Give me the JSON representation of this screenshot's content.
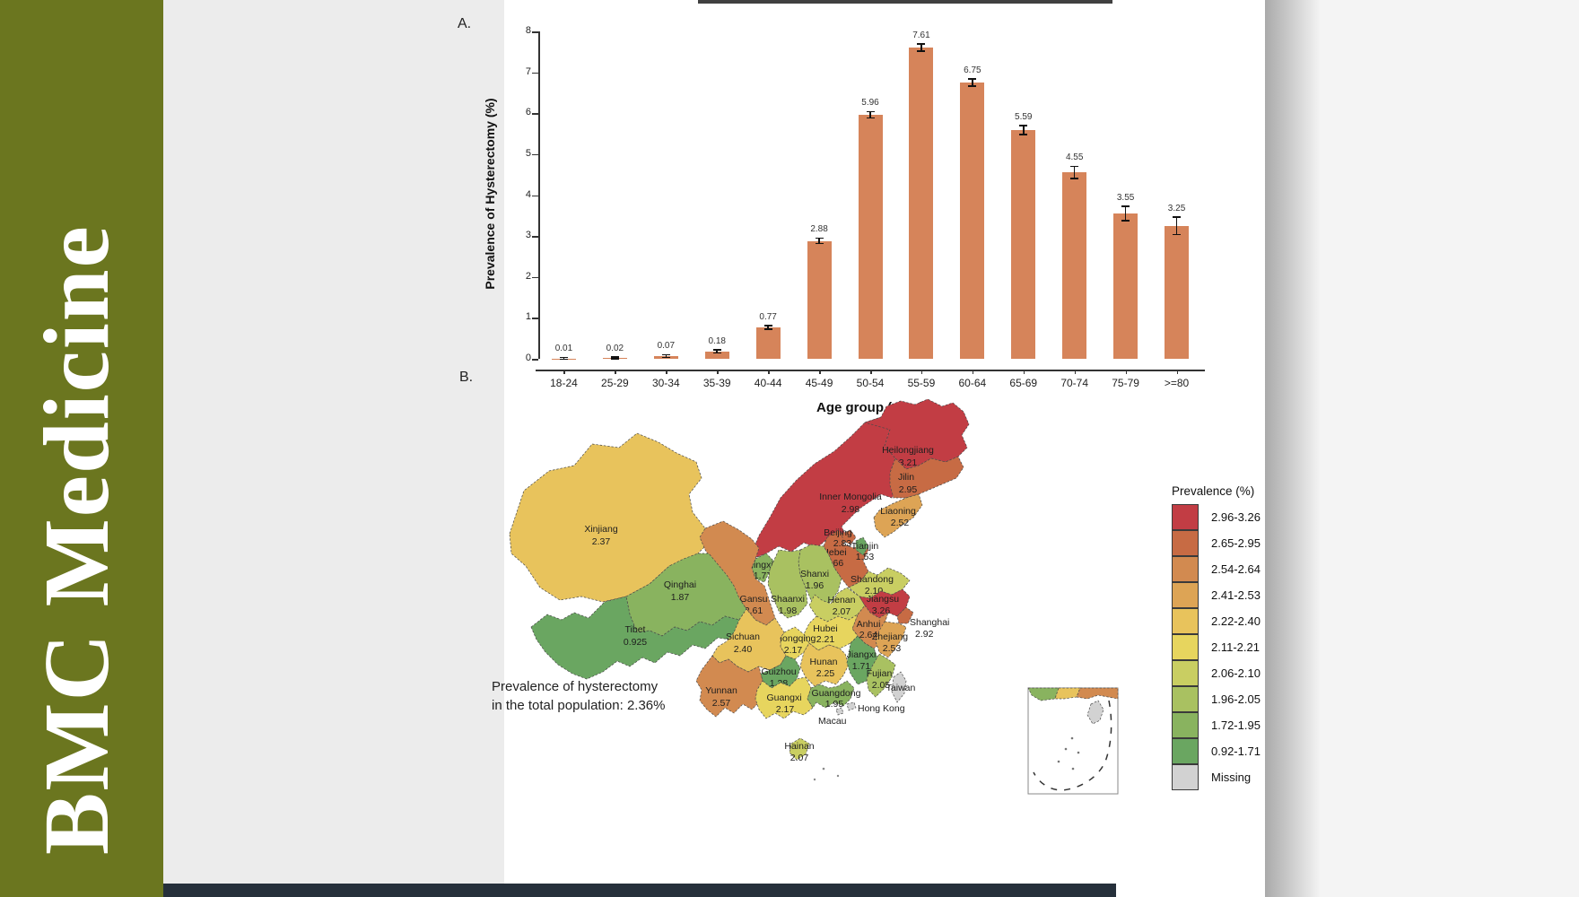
{
  "banner": {
    "journal_title": "BMC Medicine",
    "color": "#6b761f"
  },
  "panels": {
    "a_label": "A.",
    "b_label": "B."
  },
  "chart_data": [
    {
      "type": "bar",
      "title": "",
      "xlabel": "Age group (year)",
      "ylabel": "Prevalence of Hysterectomy (%)",
      "categories": [
        "18-24",
        "25-29",
        "30-34",
        "35-39",
        "40-44",
        "45-49",
        "50-54",
        "55-59",
        "60-64",
        "65-69",
        "70-74",
        "75-79",
        ">=80"
      ],
      "values": [
        0.01,
        0.02,
        0.07,
        0.18,
        0.77,
        2.88,
        5.96,
        7.61,
        6.75,
        5.59,
        4.55,
        3.55,
        3.25
      ],
      "errors": [
        0.005,
        0.008,
        0.015,
        0.025,
        0.03,
        0.05,
        0.06,
        0.07,
        0.07,
        0.09,
        0.13,
        0.16,
        0.2
      ],
      "ylim": [
        0,
        8
      ],
      "yticks": [
        0,
        1,
        2,
        3,
        4,
        5,
        6,
        7,
        8
      ],
      "bar_color": "#d6845a",
      "grid": false
    },
    {
      "type": "choropleth",
      "region": "China provinces",
      "legend_title": "Prevalence (%)",
      "legend_position": "right",
      "legend": [
        {
          "range": "2.96-3.26",
          "color": "#c23d44"
        },
        {
          "range": "2.65-2.95",
          "color": "#c76b44"
        },
        {
          "range": "2.54-2.64",
          "color": "#d28a50"
        },
        {
          "range": "2.41-2.53",
          "color": "#dda455"
        },
        {
          "range": "2.22-2.40",
          "color": "#e8c35c"
        },
        {
          "range": "2.11-2.21",
          "color": "#e7d55e"
        },
        {
          "range": "2.06-2.10",
          "color": "#c9ce62"
        },
        {
          "range": "1.96-2.05",
          "color": "#a9c161"
        },
        {
          "range": "1.72-1.95",
          "color": "#89b35f"
        },
        {
          "range": "0.92-1.71",
          "color": "#6aa661"
        },
        {
          "range": "Missing",
          "color": "#d2d2d2"
        }
      ],
      "annotation_line1": "Prevalence of hysterectomy",
      "annotation_line2": "in the total population: 2.36%",
      "provinces": {
        "heilongjiang": {
          "name": "Heilongjiang",
          "value": "3.21",
          "color": "#c23d44"
        },
        "jilin": {
          "name": "Jilin",
          "value": "2.95",
          "color": "#c76b44"
        },
        "liaoning": {
          "name": "Liaoning",
          "value": "2.52",
          "color": "#dda455"
        },
        "inner_mongolia": {
          "name": "Inner Mongolia",
          "value": "2.98",
          "color": "#c23d44"
        },
        "xinjiang": {
          "name": "Xinjiang",
          "value": "2.37",
          "color": "#e8c35c"
        },
        "gansu": {
          "name": "Gansu",
          "value": "2.61",
          "color": "#d28a50"
        },
        "ningxia": {
          "name": "Ningxia",
          "value": "1.77",
          "color": "#89b35f"
        },
        "qinghai": {
          "name": "Qinghai",
          "value": "1.87",
          "color": "#89b35f"
        },
        "tibet": {
          "name": "Tibet",
          "value": "0.925",
          "color": "#6aa661"
        },
        "beijing": {
          "name": "Beijing",
          "value": "2.83",
          "color": "#c76b44"
        },
        "tianjin": {
          "name": "Tianjin",
          "value": "1.53",
          "color": "#6aa661"
        },
        "hebei": {
          "name": "Hebei",
          "value": "2.66",
          "color": "#c76b44"
        },
        "shanxi": {
          "name": "Shanxi",
          "value": "1.96",
          "color": "#a9c161"
        },
        "shandong": {
          "name": "Shandong",
          "value": "2.10",
          "color": "#c9ce62"
        },
        "shaanxi": {
          "name": "Shaanxi",
          "value": "1.98",
          "color": "#a9c161"
        },
        "henan": {
          "name": "Henan",
          "value": "2.07",
          "color": "#c9ce62"
        },
        "jiangsu": {
          "name": "Jiangsu",
          "value": "3.26",
          "color": "#c23d44"
        },
        "anhui": {
          "name": "Anhui",
          "value": "2.64",
          "color": "#d28a50"
        },
        "shanghai": {
          "name": "Shanghai",
          "value": "2.92",
          "color": "#c76b44"
        },
        "hubei": {
          "name": "Hubei",
          "value": "2.21",
          "color": "#e7d55e"
        },
        "zhejiang": {
          "name": "Zhejiang",
          "value": "2.53",
          "color": "#dda455"
        },
        "chongqing": {
          "name": "Chongqing",
          "value": "2.17",
          "color": "#e7d55e"
        },
        "sichuan": {
          "name": "Sichuan",
          "value": "2.40",
          "color": "#e8c35c"
        },
        "hunan": {
          "name": "Hunan",
          "value": "2.25",
          "color": "#e8c35c"
        },
        "jiangxi": {
          "name": "Jiangxi",
          "value": "1.71",
          "color": "#6aa661"
        },
        "guizhou": {
          "name": "Guizhou",
          "value": "1.38",
          "color": "#6aa661"
        },
        "yunnan": {
          "name": "Yunnan",
          "value": "2.57",
          "color": "#d28a50"
        },
        "guangxi": {
          "name": "Guangxi",
          "value": "2.17",
          "color": "#e7d55e"
        },
        "guangdong": {
          "name": "Guangdong",
          "value": "1.95",
          "color": "#89b35f"
        },
        "fujian": {
          "name": "Fujian",
          "value": "2.05",
          "color": "#a9c161"
        },
        "hainan": {
          "name": "Hainan",
          "value": "2.07",
          "color": "#c9ce62"
        },
        "taiwan": {
          "name": "Taiwan",
          "value": "",
          "color": "#d2d2d2"
        },
        "hong_kong": {
          "name": "Hong Kong",
          "value": "",
          "color": "#d2d2d2"
        },
        "macau": {
          "name": "Macau",
          "value": "",
          "color": "#d2d2d2"
        }
      }
    }
  ]
}
